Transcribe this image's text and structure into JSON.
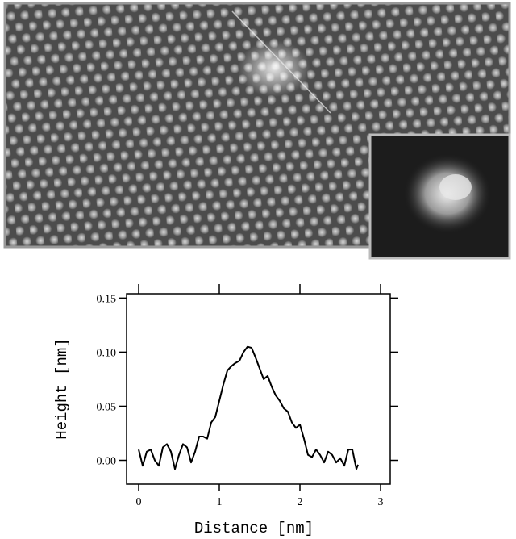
{
  "chart_data": {
    "type": "line",
    "xlabel": "Distance [nm]",
    "ylabel": "Height [nm]",
    "color": "#000000",
    "x": [
      0.0,
      0.05,
      0.1,
      0.15,
      0.2,
      0.25,
      0.3,
      0.35,
      0.4,
      0.45,
      0.5,
      0.55,
      0.6,
      0.65,
      0.7,
      0.75,
      0.8,
      0.85,
      0.9,
      0.95,
      1.0,
      1.05,
      1.1,
      1.15,
      1.2,
      1.25,
      1.3,
      1.35,
      1.4,
      1.45,
      1.5,
      1.55,
      1.6,
      1.65,
      1.7,
      1.75,
      1.8,
      1.85,
      1.9,
      1.95,
      2.0,
      2.05,
      2.1,
      2.15,
      2.2,
      2.25,
      2.3,
      2.35,
      2.4,
      2.45,
      2.5,
      2.55,
      2.6,
      2.65,
      2.7,
      2.72
    ],
    "values": [
      0.01,
      -0.005,
      0.008,
      0.01,
      0.0,
      -0.005,
      0.012,
      0.015,
      0.008,
      -0.008,
      0.005,
      0.015,
      0.012,
      -0.002,
      0.008,
      0.022,
      0.022,
      0.02,
      0.035,
      0.04,
      0.055,
      0.07,
      0.083,
      0.087,
      0.09,
      0.092,
      0.1,
      0.105,
      0.104,
      0.095,
      0.085,
      0.075,
      0.078,
      0.068,
      0.06,
      0.055,
      0.048,
      0.045,
      0.035,
      0.03,
      0.033,
      0.02,
      0.005,
      0.003,
      0.01,
      0.005,
      -0.002,
      0.008,
      0.005,
      -0.002,
      0.002,
      -0.005,
      0.01,
      0.01,
      -0.008,
      -0.004
    ],
    "xlim": [
      -0.15,
      3.12
    ],
    "xticks": [
      0,
      1,
      2,
      3
    ],
    "ylim": [
      -0.022,
      0.154
    ],
    "yticks": [
      {
        "value": 0,
        "label": "0.00"
      },
      0.05,
      {
        "value": 0.1,
        "label": "0.10"
      },
      0.15
    ]
  }
}
